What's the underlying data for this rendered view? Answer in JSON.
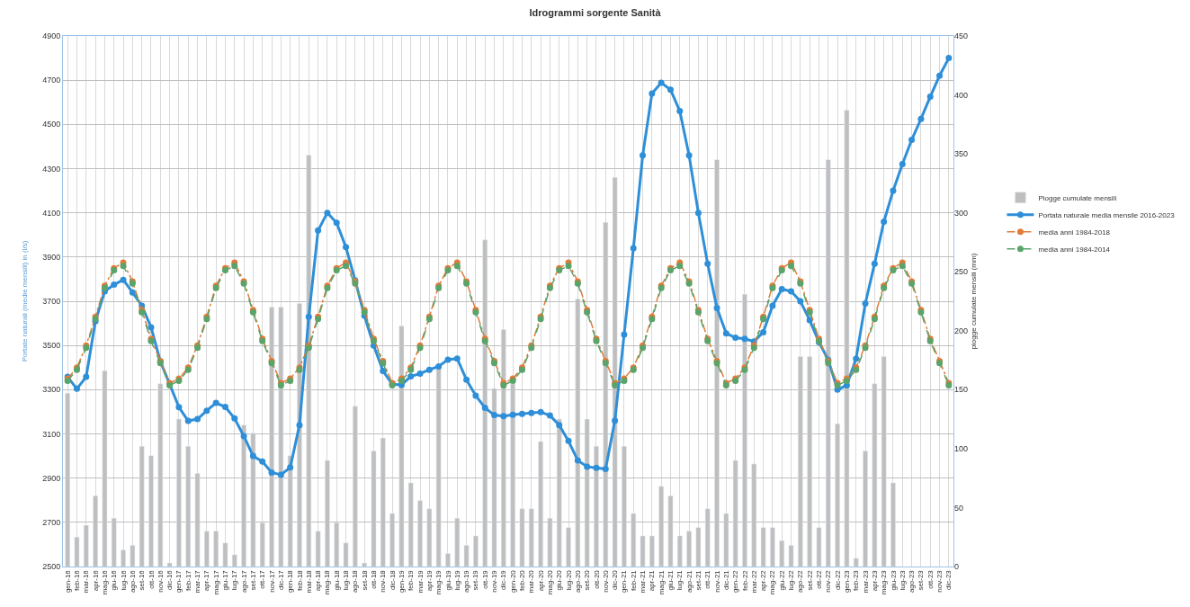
{
  "chart_data": {
    "type": "line",
    "title": "Idrogrammi sorgente Sanità",
    "ylabel": "Portate naturali (medie mensili) in (l/s)",
    "y2label": "piogge cumulate mensili (mm)",
    "categories": [
      "gen-16",
      "feb-16",
      "mar-16",
      "apr-16",
      "mag-16",
      "giu-16",
      "lug-16",
      "ago-16",
      "set-16",
      "ott-16",
      "nov-16",
      "dic-16",
      "gen-17",
      "feb-17",
      "mar-17",
      "apr-17",
      "mag-17",
      "giu-17",
      "lug-17",
      "ago-17",
      "set-17",
      "ott-17",
      "nov-17",
      "dic-17",
      "gen-18",
      "feb-18",
      "mar-18",
      "apr-18",
      "mag-18",
      "giu-18",
      "lug-18",
      "ago-18",
      "set-18",
      "ott-18",
      "nov-18",
      "dic-18",
      "gen-19",
      "feb-19",
      "mar-19",
      "apr-19",
      "mag-19",
      "giu-19",
      "lug-19",
      "ago-19",
      "set-19",
      "ott-19",
      "nov-19",
      "dic-19",
      "gen-20",
      "feb-20",
      "mar-20",
      "apr-20",
      "mag-20",
      "giu-20",
      "lug-20",
      "ago-20",
      "set-20",
      "ott-20",
      "nov-20",
      "dic-20",
      "gen-21",
      "feb-21",
      "mar-21",
      "apr-21",
      "mag-21",
      "giu-21",
      "lug-21",
      "ago-21",
      "set-21",
      "ott-21",
      "nov-21",
      "dic-21",
      "gen-22",
      "feb-22",
      "mar-22",
      "apr-22",
      "mag-22",
      "giu-22",
      "lug-22",
      "ago-22",
      "set-22",
      "ott-22",
      "nov-22",
      "dic-22",
      "gen-23",
      "feb-23",
      "mar-23",
      "apr-23",
      "mag-23",
      "giu-23",
      "lug-23",
      "ago-23",
      "set-23",
      "ott-23",
      "nov-23",
      "dic-23"
    ],
    "series": [
      {
        "name": "Piogge cumulate mensili",
        "type": "bar",
        "axis": "y2",
        "color": "#bfbfbf",
        "values": [
          147,
          25,
          35,
          60,
          166,
          41,
          14,
          18,
          102,
          94,
          155,
          3,
          125,
          102,
          79,
          30,
          30,
          20,
          10,
          120,
          113,
          37,
          220,
          220,
          94,
          223,
          349,
          30,
          90,
          37,
          20,
          136,
          3,
          98,
          109,
          45,
          204,
          71,
          56,
          49,
          170,
          11,
          41,
          18,
          26,
          277,
          151,
          201,
          155,
          49,
          49,
          106,
          41,
          125,
          33,
          227,
          125,
          102,
          292,
          330,
          102,
          45,
          26,
          26,
          68,
          60,
          26,
          30,
          33,
          49,
          345,
          45,
          90,
          231,
          87,
          33,
          33,
          22,
          18,
          178,
          178,
          33,
          345,
          121,
          387,
          7,
          98,
          155,
          178,
          71,
          null,
          null,
          null,
          null,
          null,
          null
        ]
      },
      {
        "name": "Portata naturale media mensile 2016-2023",
        "color": "#2e8fd8",
        "values": [
          3358,
          3304,
          3358,
          3610,
          3745,
          3775,
          3797,
          3740,
          3680,
          3582,
          3428,
          3325,
          3221,
          3159,
          3167,
          3205,
          3240,
          3222,
          3170,
          3090,
          3000,
          2975,
          2925,
          2915,
          2948,
          3140,
          3630,
          4020,
          4100,
          4055,
          3945,
          3795,
          3635,
          3500,
          3385,
          3325,
          3322,
          3360,
          3373,
          3390,
          3405,
          3436,
          3441,
          3345,
          3273,
          3218,
          3185,
          3180,
          3186,
          3191,
          3195,
          3199,
          3183,
          3140,
          3068,
          2980,
          2952,
          2946,
          2941,
          3160,
          3550,
          3940,
          4360,
          4640,
          4688,
          4657,
          4560,
          4360,
          4100,
          3870,
          3670,
          3555,
          3535,
          3530,
          3518,
          3560,
          3680,
          3755,
          3745,
          3700,
          3615,
          3515,
          3435,
          3300,
          3320,
          3440,
          3690,
          3870,
          4060,
          4200,
          4320,
          4430,
          4525,
          4625,
          4720,
          4800
        ]
      },
      {
        "name": "media anni 1984-2018",
        "line_style": "dotted",
        "color": "#e07b39",
        "values": [
          3350,
          3400,
          3500,
          3630,
          3770,
          3850,
          3875,
          3790,
          3660,
          3530,
          3430,
          3330,
          3350,
          3400,
          3500,
          3630,
          3770,
          3850,
          3875,
          3790,
          3660,
          3530,
          3430,
          3330,
          3350,
          3400,
          3500,
          3630,
          3770,
          3850,
          3875,
          3790,
          3660,
          3530,
          3430,
          3330,
          3350,
          3400,
          3500,
          3630,
          3770,
          3850,
          3875,
          3790,
          3660,
          3530,
          3430,
          3330,
          3350,
          3400,
          3500,
          3630,
          3770,
          3850,
          3875,
          3790,
          3660,
          3530,
          3430,
          3330,
          3350,
          3400,
          3500,
          3630,
          3770,
          3850,
          3875,
          3790,
          3660,
          3530,
          3430,
          3330,
          3350,
          3400,
          3500,
          3630,
          3770,
          3850,
          3875,
          3790,
          3660,
          3530,
          3430,
          3330,
          3350,
          3400,
          3500,
          3630,
          3770,
          3850,
          3875,
          3790,
          3660,
          3530,
          3430,
          3330
        ]
      },
      {
        "name": "media anni 1984-2014",
        "line_style": "dashed",
        "color": "#5aa36a",
        "values": [
          3340,
          3390,
          3490,
          3620,
          3760,
          3840,
          3860,
          3780,
          3650,
          3520,
          3420,
          3320,
          3340,
          3390,
          3490,
          3620,
          3760,
          3840,
          3860,
          3780,
          3650,
          3520,
          3420,
          3320,
          3340,
          3390,
          3490,
          3620,
          3760,
          3840,
          3860,
          3780,
          3650,
          3520,
          3420,
          3320,
          3340,
          3390,
          3490,
          3620,
          3760,
          3840,
          3860,
          3780,
          3650,
          3520,
          3420,
          3320,
          3340,
          3390,
          3490,
          3620,
          3760,
          3840,
          3860,
          3780,
          3650,
          3520,
          3420,
          3320,
          3340,
          3390,
          3490,
          3620,
          3760,
          3840,
          3860,
          3780,
          3650,
          3520,
          3420,
          3320,
          3340,
          3390,
          3490,
          3620,
          3760,
          3840,
          3860,
          3780,
          3650,
          3520,
          3420,
          3320,
          3340,
          3390,
          3490,
          3620,
          3760,
          3840,
          3860,
          3780,
          3650,
          3520,
          3420,
          3320
        ]
      }
    ],
    "ylim": [
      2500,
      4900
    ],
    "yticks": [
      2500,
      2700,
      2900,
      3100,
      3300,
      3500,
      3700,
      3900,
      4100,
      4300,
      4500,
      4700,
      4900
    ],
    "y2lim": [
      0,
      450
    ],
    "y2ticks": [
      0,
      50,
      100,
      150,
      200,
      250,
      300,
      350,
      400,
      450
    ],
    "grid": true,
    "legend": "right",
    "marker": "circle"
  }
}
